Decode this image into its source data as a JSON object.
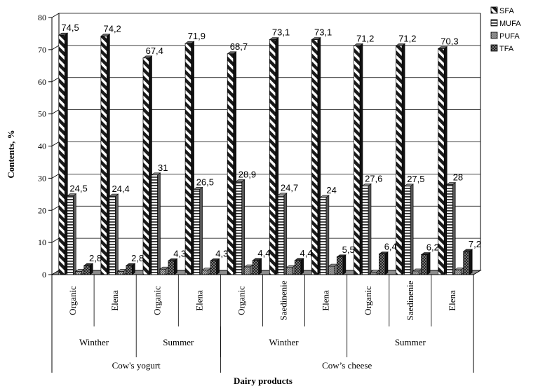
{
  "chart_data": {
    "type": "bar",
    "title": "",
    "xlabel": "Dairy products",
    "ylabel": "Contents, %",
    "ylim": [
      0,
      80
    ],
    "yticks": [
      0,
      10,
      20,
      30,
      40,
      50,
      60,
      70,
      80
    ],
    "grid": true,
    "legend_position": "top-right",
    "categories": [
      "Organic",
      "Elena",
      "Organic",
      "Elena",
      "Organic",
      "Saedinenie",
      "Elena",
      "Organic",
      "Saedinenie",
      "Elena"
    ],
    "season_groups": [
      {
        "label": "Winther",
        "span": 2
      },
      {
        "label": "Summer",
        "span": 2
      },
      {
        "label": "Winther",
        "span": 3
      },
      {
        "label": "Summer",
        "span": 3
      }
    ],
    "product_groups": [
      {
        "label": "Cow's yogurt",
        "span": 4
      },
      {
        "label": "Cow’s cheese",
        "span": 6
      }
    ],
    "series": [
      {
        "name": "SFA",
        "values": [
          74.5,
          74.2,
          67.4,
          71.9,
          68.7,
          73.1,
          73.1,
          71.2,
          71.2,
          70.3
        ],
        "labels": [
          "74,5",
          "74,2",
          "67,4",
          "71,9",
          "68,7",
          "73,1",
          "73,1",
          "71,2",
          "71,2",
          "70,3"
        ]
      },
      {
        "name": "MUFA",
        "values": [
          24.5,
          24.4,
          31,
          26.5,
          28.9,
          24.7,
          24,
          27.6,
          27.5,
          28
        ],
        "labels": [
          "24,5",
          "24,4",
          "31",
          "26,5",
          "28,9",
          "24,7",
          "24",
          "27,6",
          "27,5",
          "28"
        ]
      },
      {
        "name": "PUFA",
        "values": [
          1.0,
          1.0,
          1.7,
          1.4,
          2.4,
          2.2,
          2.6,
          0.8,
          1.1,
          1.5
        ],
        "labels": [
          "",
          "",
          "",
          "",
          "",
          "",
          "",
          "",
          "",
          ""
        ]
      },
      {
        "name": "TFA",
        "values": [
          2.8,
          2.8,
          4.3,
          4.3,
          4.4,
          4.4,
          5.5,
          6.4,
          6.2,
          7.2
        ],
        "labels": [
          "2,8",
          "2,8",
          "4,3",
          "4,3",
          "4,4",
          "4,4",
          "5,5",
          "6,4",
          "6,2",
          "7,2"
        ]
      }
    ]
  }
}
